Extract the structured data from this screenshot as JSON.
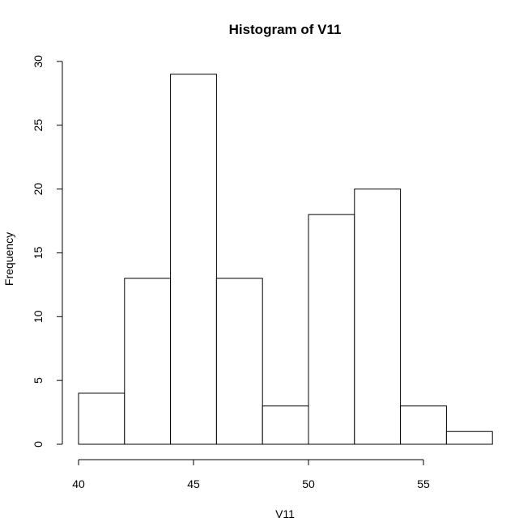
{
  "chart_data": {
    "type": "bar",
    "title": "Histogram of V11",
    "xlabel": "V11",
    "ylabel": "Frequency",
    "bins": [
      {
        "start": 40,
        "end": 42,
        "count": 4
      },
      {
        "start": 42,
        "end": 44,
        "count": 13
      },
      {
        "start": 44,
        "end": 46,
        "count": 29
      },
      {
        "start": 46,
        "end": 48,
        "count": 13
      },
      {
        "start": 48,
        "end": 50,
        "count": 3
      },
      {
        "start": 50,
        "end": 52,
        "count": 18
      },
      {
        "start": 52,
        "end": 54,
        "count": 20
      },
      {
        "start": 54,
        "end": 56,
        "count": 3
      },
      {
        "start": 56,
        "end": 58,
        "count": 1
      }
    ],
    "xticks": [
      40,
      45,
      50,
      55
    ],
    "yticks": [
      0,
      5,
      10,
      15,
      20,
      25,
      30
    ],
    "xlim": [
      40,
      58
    ],
    "ylim": [
      0,
      30
    ],
    "grid": false,
    "legend": "none"
  }
}
